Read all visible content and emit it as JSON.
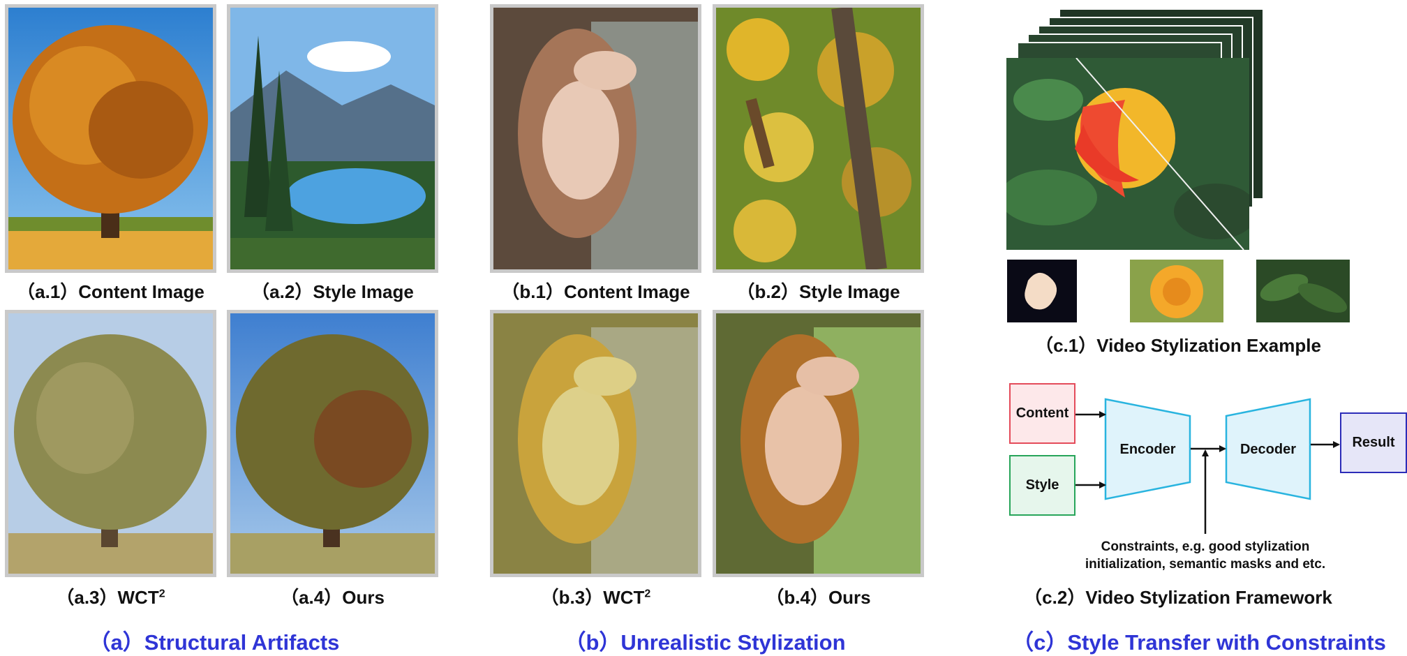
{
  "panel_a": {
    "captions": {
      "a1": "（a.1）Content Image",
      "a2": "（a.2）Style Image",
      "a3": "（a.3）WCT",
      "a4": "（a.4）Ours"
    },
    "title": "（a）Structural Artifacts"
  },
  "panel_b": {
    "captions": {
      "b1": "（b.1）Content Image",
      "b2": "（b.2）Style Image",
      "b3": "（b.3）WCT",
      "b4": "（b.4）Ours"
    },
    "title": "（b）Unrealistic Stylization"
  },
  "superscript": "2",
  "panel_c": {
    "c1_caption": "（c.1）Video Stylization Example",
    "c2_caption": "（c.2）Video Stylization Framework",
    "title": "（c）Style Transfer with Constraints",
    "diagram": {
      "content": "Content",
      "style": "Style",
      "encoder": "Encoder",
      "decoder": "Decoder",
      "result": "Result",
      "constraints_line1": "Constraints, e.g. good stylization",
      "constraints_line2": "initialization, semantic masks and etc."
    }
  },
  "colors": {
    "accent_blue": "#2f35d6",
    "content_box": "#e44b5a",
    "style_box": "#27a55a",
    "encoder_fill": "#dff3fb",
    "encoder_stroke": "#29b4df",
    "result_fill": "#e6e6f8",
    "result_stroke": "#2c2cb8"
  }
}
